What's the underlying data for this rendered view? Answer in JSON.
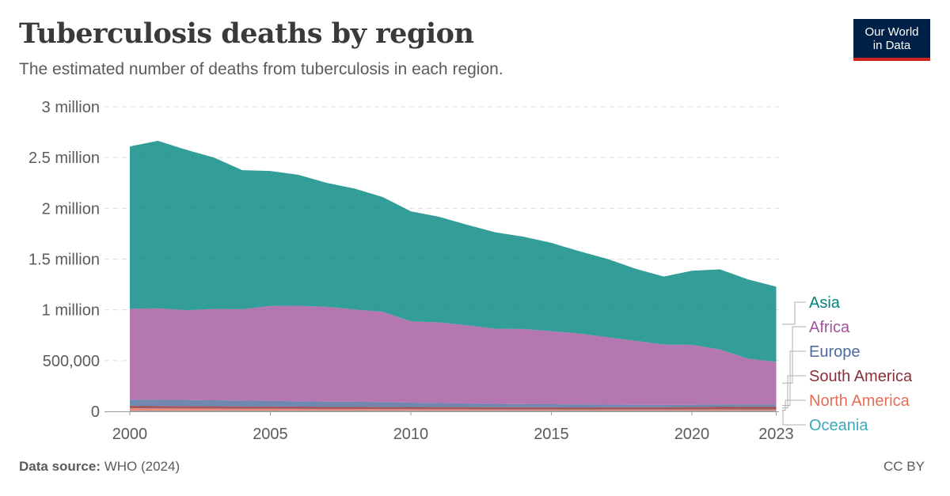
{
  "header": {
    "title": "Tuberculosis deaths by region",
    "subtitle": "The estimated number of deaths from tuberculosis in each region."
  },
  "logo": {
    "line1": "Our World",
    "line2": "in Data"
  },
  "footer": {
    "source_label": "Data source:",
    "source_value": "WHO (2024)",
    "license": "CC BY"
  },
  "chart_data": {
    "type": "area",
    "stacked": true,
    "title": "Tuberculosis deaths by region",
    "subtitle": "The estimated number of deaths from tuberculosis in each region.",
    "x": [
      2000,
      2001,
      2002,
      2003,
      2004,
      2005,
      2006,
      2007,
      2008,
      2009,
      2010,
      2011,
      2012,
      2013,
      2014,
      2015,
      2016,
      2017,
      2018,
      2019,
      2020,
      2021,
      2022,
      2023
    ],
    "xlim": [
      1999.1,
      2023.1
    ],
    "xticks": [
      2000,
      2005,
      2010,
      2015,
      2020,
      2023
    ],
    "ylim": [
      0,
      3000000
    ],
    "yticks": [
      0,
      500000,
      1000000,
      1500000,
      2000000,
      2500000,
      3000000
    ],
    "ytick_labels": [
      "0",
      "500,000",
      "1 million",
      "1.5 million",
      "2 million",
      "2.5 million",
      "3 million"
    ],
    "grid": true,
    "legend_placement": "right",
    "series": [
      {
        "name": "Oceania",
        "color": "#38aaba",
        "values": [
          4000,
          4000,
          4000,
          4000,
          4000,
          4000,
          4000,
          4000,
          4000,
          4000,
          4000,
          4000,
          4000,
          4000,
          4000,
          4000,
          4000,
          4000,
          4000,
          4000,
          4000,
          4000,
          4000,
          4000
        ]
      },
      {
        "name": "North America",
        "color": "#e56e5a",
        "values": [
          26000,
          25000,
          24000,
          23000,
          22000,
          21000,
          20000,
          19000,
          19000,
          18000,
          17000,
          16000,
          16000,
          15000,
          14000,
          14000,
          13000,
          13000,
          13000,
          13000,
          14000,
          15000,
          14000,
          14000
        ]
      },
      {
        "name": "South America",
        "color": "#883039",
        "values": [
          25000,
          25000,
          24000,
          24000,
          23000,
          23000,
          23000,
          23000,
          23000,
          23000,
          22000,
          22000,
          22000,
          22000,
          22000,
          22000,
          22000,
          23000,
          23000,
          24000,
          25000,
          28000,
          30000,
          30000
        ]
      },
      {
        "name": "Europe",
        "color": "#4c6a9c",
        "values": [
          60000,
          61000,
          60000,
          58000,
          57000,
          55000,
          53000,
          50000,
          48000,
          46000,
          43000,
          40000,
          36000,
          33000,
          31000,
          30000,
          28000,
          26000,
          24000,
          22000,
          22000,
          22000,
          21000,
          20000
        ]
      },
      {
        "name": "Africa",
        "color": "#a2559c",
        "values": [
          895000,
          900000,
          885000,
          900000,
          900000,
          935000,
          940000,
          935000,
          910000,
          890000,
          800000,
          795000,
          770000,
          740000,
          740000,
          720000,
          700000,
          665000,
          630000,
          595000,
          590000,
          540000,
          450000,
          420000
        ]
      },
      {
        "name": "Asia",
        "color": "#00847e",
        "values": [
          1600000,
          1650000,
          1580000,
          1490000,
          1370000,
          1330000,
          1290000,
          1220000,
          1190000,
          1130000,
          1085000,
          1040000,
          990000,
          950000,
          910000,
          870000,
          810000,
          770000,
          710000,
          670000,
          730000,
          790000,
          780000,
          740000
        ]
      }
    ]
  }
}
